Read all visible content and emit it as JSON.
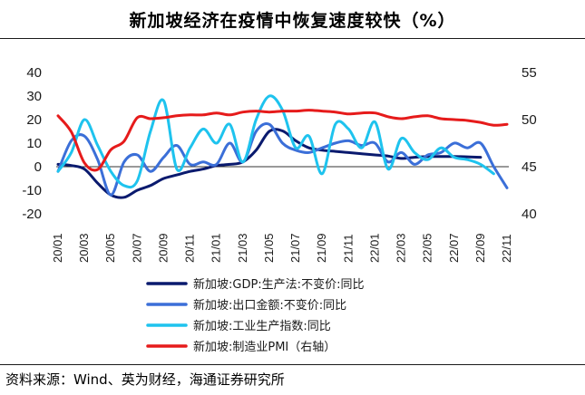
{
  "header": {
    "title": "新加坡经济在疫情中恢复速度较快（%）"
  },
  "footer": {
    "source": "资料来源：Wind、英为财经，海通证券研究所"
  },
  "chart_data": {
    "type": "line",
    "title": "新加坡经济在疫情中恢复速度较快（%）",
    "categories": [
      "20/01",
      "20/02",
      "20/03",
      "20/04",
      "20/05",
      "20/06",
      "20/07",
      "20/08",
      "20/09",
      "20/10",
      "20/11",
      "20/12",
      "21/01",
      "21/02",
      "21/03",
      "21/04",
      "21/05",
      "21/06",
      "21/07",
      "21/08",
      "21/09",
      "21/10",
      "21/11",
      "21/12",
      "22/01",
      "22/02",
      "22/03",
      "22/04",
      "22/05",
      "22/06",
      "22/07",
      "22/08",
      "22/09",
      "22/10",
      "22/11"
    ],
    "x_tick_labels": [
      "20/01",
      "20/03",
      "20/05",
      "20/07",
      "20/09",
      "20/11",
      "21/01",
      "21/03",
      "21/05",
      "21/07",
      "21/09",
      "21/11",
      "22/01",
      "22/03",
      "22/05",
      "22/07",
      "22/09",
      "22/11"
    ],
    "left_axis": {
      "min": -20,
      "max": 40,
      "step": 10,
      "ticks": [
        "40",
        "30",
        "20",
        "10",
        "0",
        "-10",
        "-20"
      ]
    },
    "right_axis": {
      "min": 40,
      "max": 55,
      "step": 5,
      "ticks": [
        "55",
        "50",
        "45",
        "40"
      ]
    },
    "series": [
      {
        "name": "新加坡:GDP:生产法:不变价:同比",
        "axis": "left",
        "color": "#0a1a6e",
        "values": [
          1.0,
          0.5,
          -1.0,
          -7.0,
          -12.0,
          -13.0,
          -10.0,
          -8.0,
          -5.0,
          -3.5,
          -2.0,
          -1.0,
          0.5,
          1.0,
          2.0,
          7.0,
          15.0,
          15.2,
          11.0,
          8.0,
          7.0,
          6.5,
          6.0,
          5.5,
          5.0,
          4.5,
          3.5,
          4.0,
          4.3,
          4.3,
          4.3,
          4.2,
          4.0,
          null,
          null
        ]
      },
      {
        "name": "新加坡:出口金额:不变价:同比",
        "axis": "left",
        "color": "#3b6fd8",
        "values": [
          -2.0,
          11.0,
          13.0,
          3.0,
          -12.0,
          2.0,
          5.0,
          -2.0,
          4.0,
          9.0,
          1.0,
          2.0,
          1.0,
          10.0,
          2.0,
          15.0,
          18.0,
          10.0,
          7.0,
          6.0,
          8.0,
          10.0,
          11.0,
          9.0,
          10.0,
          2.0,
          6.0,
          1.0,
          5.0,
          6.0,
          10.0,
          8.0,
          10.0,
          0.0,
          -9.0
        ]
      },
      {
        "name": "新加坡:工业生产指数:同比",
        "axis": "left",
        "color": "#1ec3ee",
        "values": [
          -2.0,
          6.0,
          20.0,
          9.0,
          -2.0,
          -8.0,
          -6.0,
          15.0,
          28.0,
          -1.0,
          8.0,
          16.0,
          10.0,
          18.0,
          2.0,
          20.0,
          30.0,
          24.0,
          8.0,
          13.0,
          -3.0,
          18.0,
          16.0,
          8.0,
          19.0,
          -1.0,
          12.0,
          6.0,
          3.0,
          8.0,
          4.0,
          3.0,
          1.0,
          -3.0,
          null
        ]
      },
      {
        "name": "新加坡:制造业PMI（右轴）",
        "axis": "right",
        "color": "#e61b1b",
        "values": [
          50.4,
          48.7,
          45.4,
          44.7,
          46.8,
          47.7,
          50.2,
          50.1,
          50.2,
          50.4,
          50.5,
          50.5,
          50.7,
          50.5,
          50.8,
          50.9,
          50.8,
          50.9,
          50.9,
          51.0,
          50.9,
          50.8,
          50.6,
          50.7,
          50.7,
          50.3,
          50.1,
          50.3,
          50.4,
          50.1,
          50.0,
          49.9,
          49.7,
          49.4,
          49.5
        ]
      }
    ]
  }
}
